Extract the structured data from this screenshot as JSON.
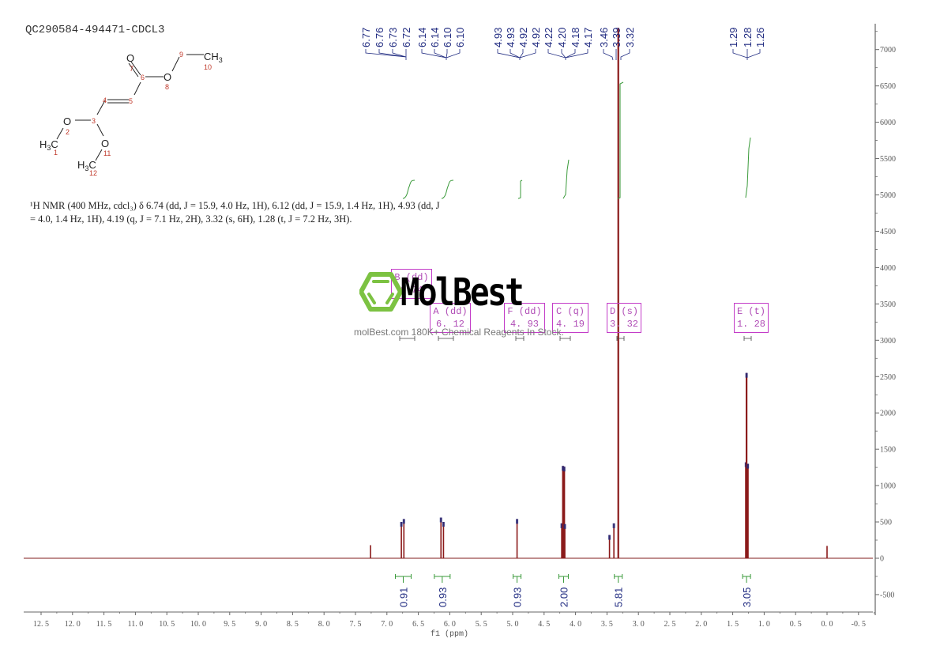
{
  "header": {
    "sample_id": "QC290584-494471-CDCL3"
  },
  "structure": {
    "atoms": [
      {
        "label": "O",
        "num": "7"
      },
      {
        "label": "C",
        "num": "6"
      },
      {
        "label": "O",
        "num": "8"
      },
      {
        "label": "C",
        "num": "9"
      },
      {
        "label": "CH3",
        "num": "10"
      },
      {
        "label": "C",
        "num": "5"
      },
      {
        "label": "C",
        "num": "4"
      },
      {
        "label": "C",
        "num": "3"
      },
      {
        "label": "O",
        "num": "2"
      },
      {
        "label": "H3C",
        "num": "1"
      },
      {
        "label": "O",
        "num": "11"
      },
      {
        "label": "H3C",
        "num": "12"
      }
    ]
  },
  "nmr_description": {
    "line1": "¹H NMR (400 MHz, cdcl₃) δ 6.74 (dd, J = 15.9, 4.0 Hz, 1H), 6.12 (dd, J = 15.9, 1.4 Hz, 1H), 4.93 (dd, J",
    "line2": "= 4.0, 1.4 Hz, 1H), 4.19 (q, J = 7.1 Hz, 2H), 3.32 (s, 6H), 1.28 (t, J = 7.2 Hz, 3H)."
  },
  "watermark": {
    "brand": "MolBest",
    "tagline": "molBest.com 180K+ Chemical Reagents In Stock."
  },
  "multiplets": [
    {
      "id": "B",
      "type": "dd",
      "shift": "6.74",
      "label": "B (dd)",
      "value": "6.74"
    },
    {
      "id": "A",
      "type": "dd",
      "shift": "6.12",
      "label": "A (dd)",
      "value": "6. 12"
    },
    {
      "id": "F",
      "type": "dd",
      "shift": "4.93",
      "label": "F (dd)",
      "value": "4. 93"
    },
    {
      "id": "C",
      "type": "q",
      "shift": "4.19",
      "label": "C (q)",
      "value": "4. 19"
    },
    {
      "id": "D",
      "type": "s",
      "shift": "3.32",
      "label": "D (s)",
      "value": "3. 32"
    },
    {
      "id": "E",
      "type": "t",
      "shift": "1.28",
      "label": "E (t)",
      "value": "1. 28"
    }
  ],
  "colors": {
    "spectrum": "#8b1a1a",
    "peak_labels": "#1f2a80",
    "integrals": "#3a9a3a",
    "multiplet_box": "#c33cc8",
    "logo_green": "#7cc242"
  },
  "chart_data": {
    "type": "line",
    "title": "QC290584-494471-CDCL3",
    "xlabel": "f1 (ppm)",
    "ylabel": "",
    "xlim": [
      12.8,
      -0.6
    ],
    "ylim": [
      -700,
      7300
    ],
    "x_ticks": [
      "12.5",
      "12.0",
      "11.5",
      "11.0",
      "10.5",
      "10.0",
      "9.5",
      "9.0",
      "8.5",
      "8.0",
      "7.5",
      "7.0",
      "6.5",
      "6.0",
      "5.5",
      "5.0",
      "4.5",
      "4.0",
      "3.5",
      "3.0",
      "2.5",
      "2.0",
      "1.5",
      "1.0",
      "0.5",
      "0.0",
      "-0.5"
    ],
    "y_ticks": [
      "7000",
      "6500",
      "6000",
      "5500",
      "5000",
      "4500",
      "4000",
      "3500",
      "3000",
      "2500",
      "2000",
      "1500",
      "1000",
      "500",
      "0",
      "-500"
    ],
    "grid": false,
    "peak_labels": [
      "6.77",
      "6.76",
      "6.73",
      "6.72",
      "6.14",
      "6.14",
      "6.10",
      "6.10",
      "4.93",
      "4.93",
      "4.92",
      "4.92",
      "4.22",
      "4.20",
      "4.18",
      "4.17",
      "3.46",
      "3.39",
      "3.32",
      "1.29",
      "1.28",
      "1.26"
    ],
    "peaks": [
      {
        "ppm": 7.26,
        "intensity": 180
      },
      {
        "ppm": 6.77,
        "intensity": 500
      },
      {
        "ppm": 6.73,
        "intensity": 540
      },
      {
        "ppm": 6.14,
        "intensity": 560
      },
      {
        "ppm": 6.1,
        "intensity": 500
      },
      {
        "ppm": 4.93,
        "intensity": 540
      },
      {
        "ppm": 4.22,
        "intensity": 480
      },
      {
        "ppm": 4.2,
        "intensity": 1270
      },
      {
        "ppm": 4.18,
        "intensity": 1260
      },
      {
        "ppm": 4.17,
        "intensity": 470
      },
      {
        "ppm": 3.46,
        "intensity": 320
      },
      {
        "ppm": 3.39,
        "intensity": 480
      },
      {
        "ppm": 3.32,
        "intensity": 7300
      },
      {
        "ppm": 1.29,
        "intensity": 1320
      },
      {
        "ppm": 1.28,
        "intensity": 2550
      },
      {
        "ppm": 1.26,
        "intensity": 1300
      },
      {
        "ppm": 0.0,
        "intensity": 170
      }
    ],
    "integrals": [
      {
        "ppm": 6.74,
        "value": "0.91"
      },
      {
        "ppm": 6.12,
        "value": "0.93"
      },
      {
        "ppm": 4.93,
        "value": "0.93"
      },
      {
        "ppm": 4.19,
        "value": "2.00"
      },
      {
        "ppm": 3.32,
        "value": "5.81"
      },
      {
        "ppm": 1.28,
        "value": "3.05"
      }
    ]
  }
}
